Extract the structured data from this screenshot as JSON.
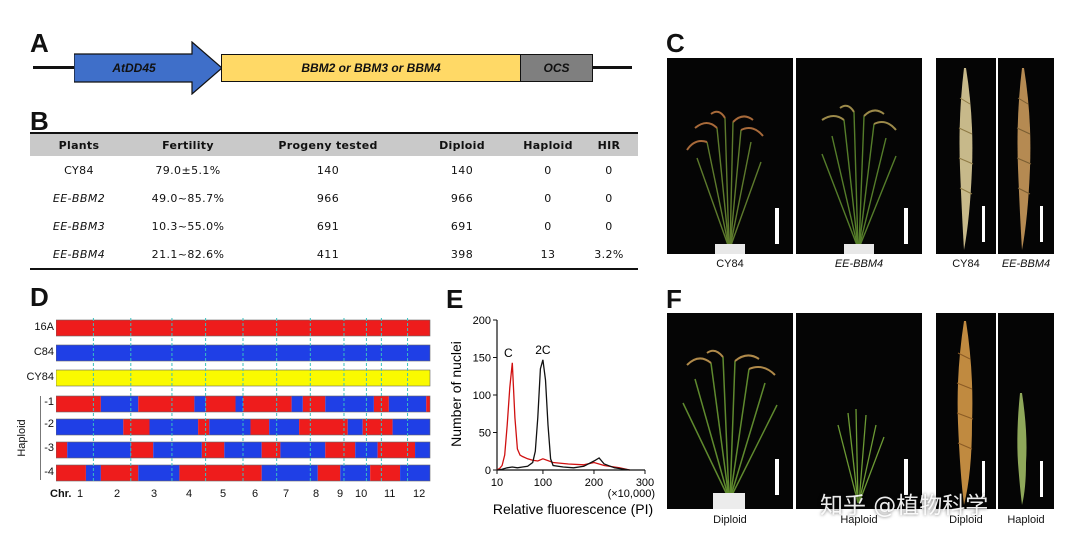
{
  "panelA": {
    "letter": "A",
    "segments": [
      {
        "label": "AtDD45",
        "color": "#3f6fc9"
      },
      {
        "label": "BBM2 or BBM3 or BBM4",
        "color": "#ffd966"
      },
      {
        "label": "OCS",
        "color": "#7f7f7f"
      }
    ]
  },
  "panelB": {
    "letter": "B",
    "headers": [
      "Plants",
      "Fertility",
      "Progeny tested",
      "Diploid",
      "Haploid",
      "HIR"
    ],
    "rows": [
      [
        "CY84",
        "79.0±5.1%",
        "140",
        "140",
        "0",
        "0"
      ],
      [
        "EE-BBM2",
        "49.0~85.7%",
        "966",
        "966",
        "0",
        "0"
      ],
      [
        "EE-BBM3",
        "10.3~55.0%",
        "691",
        "691",
        "0",
        "0"
      ],
      [
        "EE-BBM4",
        "21.1~82.6%",
        "411",
        "398",
        "13",
        "3.2%"
      ]
    ]
  },
  "panelC": {
    "letter": "C",
    "captions": [
      "CY84",
      "EE-BBM4",
      "CY84",
      "EE-BBM4"
    ]
  },
  "panelD": {
    "letter": "D",
    "row_labels": [
      "16A",
      "C84",
      "CY84",
      "-1",
      "-2",
      "-3",
      "-4"
    ],
    "group_label": "Haploid",
    "chr_prefix": "Chr.",
    "chromosomes": [
      "1",
      "2",
      "3",
      "4",
      "5",
      "6",
      "7",
      "8",
      "9",
      "10",
      "11",
      "12"
    ],
    "colors": {
      "red": "#ee1c1c",
      "blue": "#1f3fe6",
      "yellow": "#fafa00",
      "divider": "#38c0c0"
    }
  },
  "panelE": {
    "letter": "E",
    "ylabel": "Number of nuclei",
    "xlabel": "Relative fluorescence (PI)",
    "x_multiplier": "(×10,000)",
    "peak_labels": [
      "C",
      "2C"
    ],
    "x_ticks": [
      "10",
      "100",
      "200",
      "300"
    ],
    "y_ticks": [
      "0",
      "50",
      "100",
      "150",
      "200"
    ]
  },
  "panelF": {
    "letter": "F",
    "captions": [
      "Diploid",
      "Haploid",
      "Diploid",
      "Haploid"
    ]
  },
  "watermark": "知乎 @植物科学",
  "chart_data": {
    "type": "line",
    "xlabel": "Relative fluorescence (PI)",
    "ylabel": "Number of nuclei",
    "xlim": [
      10,
      300
    ],
    "ylim": [
      0,
      200
    ],
    "series": [
      {
        "name": "C",
        "color": "#d01010",
        "x": [
          10,
          15,
          20,
          25,
          30,
          35,
          40,
          45,
          50,
          55,
          60,
          70,
          80,
          90,
          100,
          120,
          150,
          180,
          200,
          220,
          250,
          270
        ],
        "y": [
          0,
          2,
          6,
          20,
          60,
          110,
          143,
          70,
          28,
          20,
          18,
          15,
          13,
          12,
          15,
          10,
          8,
          7,
          10,
          6,
          3,
          0
        ]
      },
      {
        "name": "2C",
        "color": "#111111",
        "x": [
          10,
          20,
          30,
          40,
          50,
          60,
          70,
          80,
          85,
          90,
          95,
          100,
          105,
          110,
          115,
          120,
          140,
          160,
          180,
          200,
          210,
          220,
          240,
          260,
          270
        ],
        "y": [
          0,
          1,
          3,
          4,
          3,
          4,
          5,
          10,
          25,
          70,
          135,
          147,
          120,
          60,
          15,
          6,
          4,
          3,
          5,
          12,
          16,
          8,
          3,
          1,
          0
        ]
      }
    ]
  }
}
